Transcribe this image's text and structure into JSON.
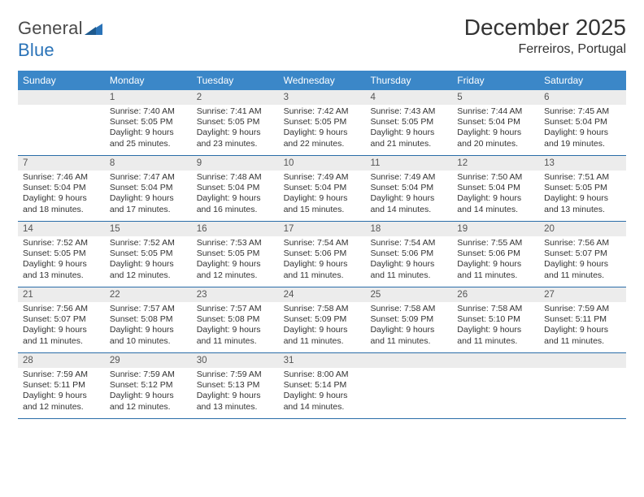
{
  "brand": {
    "name_a": "General",
    "name_b": "Blue"
  },
  "header": {
    "month": "December 2025",
    "location": "Ferreiros, Portugal"
  },
  "colors": {
    "header_bg": "#3b87c8",
    "header_fg": "#ffffff",
    "week_border": "#2a6da8",
    "daynum_bg": "#ececec",
    "daynum_fg": "#555555",
    "text": "#333333",
    "logo_gray": "#4a4a4a",
    "logo_blue": "#2a73b8"
  },
  "day_names": [
    "Sunday",
    "Monday",
    "Tuesday",
    "Wednesday",
    "Thursday",
    "Friday",
    "Saturday"
  ],
  "weeks": [
    [
      {
        "num": "",
        "sunrise": "",
        "sunset": "",
        "daylight": ""
      },
      {
        "num": "1",
        "sunrise": "Sunrise: 7:40 AM",
        "sunset": "Sunset: 5:05 PM",
        "daylight": "Daylight: 9 hours and 25 minutes."
      },
      {
        "num": "2",
        "sunrise": "Sunrise: 7:41 AM",
        "sunset": "Sunset: 5:05 PM",
        "daylight": "Daylight: 9 hours and 23 minutes."
      },
      {
        "num": "3",
        "sunrise": "Sunrise: 7:42 AM",
        "sunset": "Sunset: 5:05 PM",
        "daylight": "Daylight: 9 hours and 22 minutes."
      },
      {
        "num": "4",
        "sunrise": "Sunrise: 7:43 AM",
        "sunset": "Sunset: 5:05 PM",
        "daylight": "Daylight: 9 hours and 21 minutes."
      },
      {
        "num": "5",
        "sunrise": "Sunrise: 7:44 AM",
        "sunset": "Sunset: 5:04 PM",
        "daylight": "Daylight: 9 hours and 20 minutes."
      },
      {
        "num": "6",
        "sunrise": "Sunrise: 7:45 AM",
        "sunset": "Sunset: 5:04 PM",
        "daylight": "Daylight: 9 hours and 19 minutes."
      }
    ],
    [
      {
        "num": "7",
        "sunrise": "Sunrise: 7:46 AM",
        "sunset": "Sunset: 5:04 PM",
        "daylight": "Daylight: 9 hours and 18 minutes."
      },
      {
        "num": "8",
        "sunrise": "Sunrise: 7:47 AM",
        "sunset": "Sunset: 5:04 PM",
        "daylight": "Daylight: 9 hours and 17 minutes."
      },
      {
        "num": "9",
        "sunrise": "Sunrise: 7:48 AM",
        "sunset": "Sunset: 5:04 PM",
        "daylight": "Daylight: 9 hours and 16 minutes."
      },
      {
        "num": "10",
        "sunrise": "Sunrise: 7:49 AM",
        "sunset": "Sunset: 5:04 PM",
        "daylight": "Daylight: 9 hours and 15 minutes."
      },
      {
        "num": "11",
        "sunrise": "Sunrise: 7:49 AM",
        "sunset": "Sunset: 5:04 PM",
        "daylight": "Daylight: 9 hours and 14 minutes."
      },
      {
        "num": "12",
        "sunrise": "Sunrise: 7:50 AM",
        "sunset": "Sunset: 5:04 PM",
        "daylight": "Daylight: 9 hours and 14 minutes."
      },
      {
        "num": "13",
        "sunrise": "Sunrise: 7:51 AM",
        "sunset": "Sunset: 5:05 PM",
        "daylight": "Daylight: 9 hours and 13 minutes."
      }
    ],
    [
      {
        "num": "14",
        "sunrise": "Sunrise: 7:52 AM",
        "sunset": "Sunset: 5:05 PM",
        "daylight": "Daylight: 9 hours and 13 minutes."
      },
      {
        "num": "15",
        "sunrise": "Sunrise: 7:52 AM",
        "sunset": "Sunset: 5:05 PM",
        "daylight": "Daylight: 9 hours and 12 minutes."
      },
      {
        "num": "16",
        "sunrise": "Sunrise: 7:53 AM",
        "sunset": "Sunset: 5:05 PM",
        "daylight": "Daylight: 9 hours and 12 minutes."
      },
      {
        "num": "17",
        "sunrise": "Sunrise: 7:54 AM",
        "sunset": "Sunset: 5:06 PM",
        "daylight": "Daylight: 9 hours and 11 minutes."
      },
      {
        "num": "18",
        "sunrise": "Sunrise: 7:54 AM",
        "sunset": "Sunset: 5:06 PM",
        "daylight": "Daylight: 9 hours and 11 minutes."
      },
      {
        "num": "19",
        "sunrise": "Sunrise: 7:55 AM",
        "sunset": "Sunset: 5:06 PM",
        "daylight": "Daylight: 9 hours and 11 minutes."
      },
      {
        "num": "20",
        "sunrise": "Sunrise: 7:56 AM",
        "sunset": "Sunset: 5:07 PM",
        "daylight": "Daylight: 9 hours and 11 minutes."
      }
    ],
    [
      {
        "num": "21",
        "sunrise": "Sunrise: 7:56 AM",
        "sunset": "Sunset: 5:07 PM",
        "daylight": "Daylight: 9 hours and 11 minutes."
      },
      {
        "num": "22",
        "sunrise": "Sunrise: 7:57 AM",
        "sunset": "Sunset: 5:08 PM",
        "daylight": "Daylight: 9 hours and 10 minutes."
      },
      {
        "num": "23",
        "sunrise": "Sunrise: 7:57 AM",
        "sunset": "Sunset: 5:08 PM",
        "daylight": "Daylight: 9 hours and 11 minutes."
      },
      {
        "num": "24",
        "sunrise": "Sunrise: 7:58 AM",
        "sunset": "Sunset: 5:09 PM",
        "daylight": "Daylight: 9 hours and 11 minutes."
      },
      {
        "num": "25",
        "sunrise": "Sunrise: 7:58 AM",
        "sunset": "Sunset: 5:09 PM",
        "daylight": "Daylight: 9 hours and 11 minutes."
      },
      {
        "num": "26",
        "sunrise": "Sunrise: 7:58 AM",
        "sunset": "Sunset: 5:10 PM",
        "daylight": "Daylight: 9 hours and 11 minutes."
      },
      {
        "num": "27",
        "sunrise": "Sunrise: 7:59 AM",
        "sunset": "Sunset: 5:11 PM",
        "daylight": "Daylight: 9 hours and 11 minutes."
      }
    ],
    [
      {
        "num": "28",
        "sunrise": "Sunrise: 7:59 AM",
        "sunset": "Sunset: 5:11 PM",
        "daylight": "Daylight: 9 hours and 12 minutes."
      },
      {
        "num": "29",
        "sunrise": "Sunrise: 7:59 AM",
        "sunset": "Sunset: 5:12 PM",
        "daylight": "Daylight: 9 hours and 12 minutes."
      },
      {
        "num": "30",
        "sunrise": "Sunrise: 7:59 AM",
        "sunset": "Sunset: 5:13 PM",
        "daylight": "Daylight: 9 hours and 13 minutes."
      },
      {
        "num": "31",
        "sunrise": "Sunrise: 8:00 AM",
        "sunset": "Sunset: 5:14 PM",
        "daylight": "Daylight: 9 hours and 14 minutes."
      },
      {
        "num": "",
        "sunrise": "",
        "sunset": "",
        "daylight": ""
      },
      {
        "num": "",
        "sunrise": "",
        "sunset": "",
        "daylight": ""
      },
      {
        "num": "",
        "sunrise": "",
        "sunset": "",
        "daylight": ""
      }
    ]
  ]
}
